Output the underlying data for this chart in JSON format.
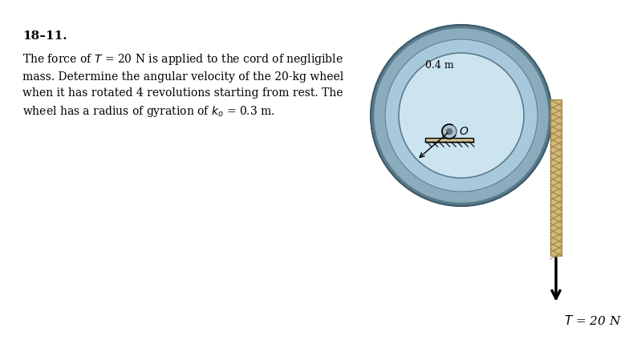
{
  "problem_number": "18–11.",
  "text_lines": [
    "The force of $T$ = 20 N is applied to the cord of negligible",
    "mass. Determine the angular velocity of the 20-kg wheel",
    "when it has rotated 4 revolutions starting from rest. The",
    "wheel has a radius of gyration of $k_o$ = 0.3 m."
  ],
  "label_radius": "0.4 m",
  "label_center": "$O$",
  "label_tension": "$T$ = 20 N",
  "background_color": "#ffffff",
  "wheel_outer_color": "#8aacbd",
  "wheel_rim_color": "#a8c8dc",
  "wheel_face_color": "#cce4f0",
  "wheel_border_dark": "#5a7a8a",
  "wheel_border_light": "#90b0c0",
  "cord_fill": "#d4b87a",
  "cord_edge": "#9a8040",
  "ground_color": "#d4c090",
  "axle_color": "#b8c8d0"
}
